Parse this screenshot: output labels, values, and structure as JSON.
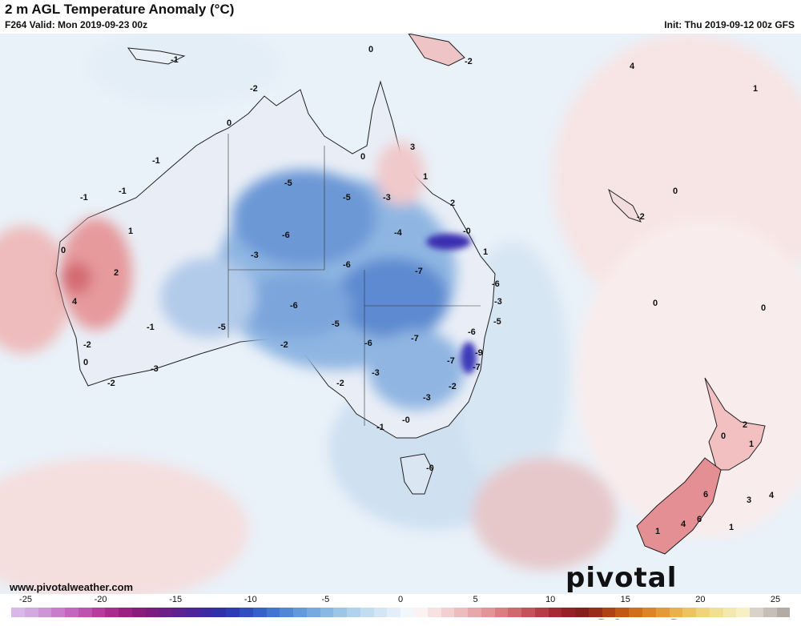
{
  "header": {
    "title": "2 m AGL Temperature Anomaly (°C)",
    "valid": "F264 Valid: Mon 2019-09-23 00z",
    "init": "Init: Thu 2019-09-12 00z GFS"
  },
  "watermark": "pivotal weather",
  "url": "www.pivotalweather.com",
  "colorbar": {
    "ticks": [
      "-25",
      "-20",
      "-15",
      "-10",
      "-5",
      "0",
      "5",
      "10",
      "15",
      "20",
      "25"
    ],
    "colors": [
      "#d8b8e8",
      "#d4a8e0",
      "#cf94d8",
      "#c97ccc",
      "#c466bf",
      "#bd52b0",
      "#b63ca0",
      "#aa2b90",
      "#9a2084",
      "#8a1c7e",
      "#7c1c80",
      "#6e1e88",
      "#5e2190",
      "#4e2598",
      "#3e2aa0",
      "#3030a8",
      "#2d3cb4",
      "#2f4ec0",
      "#3562c8",
      "#4176d0",
      "#5088d6",
      "#609ada",
      "#74aadf",
      "#88b8e4",
      "#9cc6e8",
      "#b0d2ec",
      "#c2dcf0",
      "#d4e6f4",
      "#e4eef8",
      "#f2f7fb",
      "#fbf2f2",
      "#f7e2e2",
      "#f2cfd0",
      "#edbcbe",
      "#e8a8ab",
      "#e29498",
      "#da7e84",
      "#d06870",
      "#c4525c",
      "#b63c48",
      "#a62a36",
      "#962028",
      "#86201e",
      "#982e18",
      "#ac4216",
      "#c05816",
      "#d06e1c",
      "#dc8428",
      "#e49a38",
      "#eab04c",
      "#eec462",
      "#f0d47a",
      "#f2e092",
      "#f4e9ac",
      "#f6f0c4",
      "#d9d2c8",
      "#c6bfb7",
      "#b3aca6"
    ]
  },
  "map_labels": [
    {
      "t": "-1"
    },
    {
      "t": "-2"
    },
    {
      "t": "-2"
    },
    {
      "t": "0"
    },
    {
      "t": "-1"
    },
    {
      "t": "-1"
    },
    {
      "t": "-1"
    },
    {
      "t": "0"
    },
    {
      "t": "1"
    },
    {
      "t": "0"
    },
    {
      "t": "2"
    },
    {
      "t": "4"
    },
    {
      "t": "-1"
    },
    {
      "t": "-2"
    },
    {
      "t": "0"
    },
    {
      "t": "-3"
    },
    {
      "t": "-2"
    },
    {
      "t": "-5"
    },
    {
      "t": "-5"
    },
    {
      "t": "-3"
    },
    {
      "t": "-6"
    },
    {
      "t": "-3"
    },
    {
      "t": "-4"
    },
    {
      "t": "-6"
    },
    {
      "t": "-7"
    },
    {
      "t": "-6"
    },
    {
      "t": "-5"
    },
    {
      "t": "-5"
    },
    {
      "t": "-6"
    },
    {
      "t": "-7"
    },
    {
      "t": "-2"
    },
    {
      "t": "-3"
    },
    {
      "t": "-2"
    },
    {
      "t": "-3"
    },
    {
      "t": "-2"
    },
    {
      "t": "-0"
    },
    {
      "t": "-1"
    },
    {
      "t": "-0"
    },
    {
      "t": "0"
    },
    {
      "t": "3"
    },
    {
      "t": "1"
    },
    {
      "t": "2"
    },
    {
      "t": "-0"
    },
    {
      "t": "1"
    },
    {
      "t": "-6"
    },
    {
      "t": "-3"
    },
    {
      "t": "-5"
    },
    {
      "t": "-6"
    },
    {
      "t": "-9"
    },
    {
      "t": "-7"
    },
    {
      "t": "-7"
    },
    {
      "t": "0"
    },
    {
      "t": "0"
    },
    {
      "t": "-2"
    },
    {
      "t": "1"
    },
    {
      "t": "4"
    },
    {
      "t": "0"
    },
    {
      "t": "2"
    },
    {
      "t": "0"
    },
    {
      "t": "1"
    },
    {
      "t": "3"
    },
    {
      "t": "6"
    },
    {
      "t": "1"
    },
    {
      "t": "4"
    },
    {
      "t": "6"
    },
    {
      "t": "1"
    },
    {
      "t": "4"
    }
  ]
}
